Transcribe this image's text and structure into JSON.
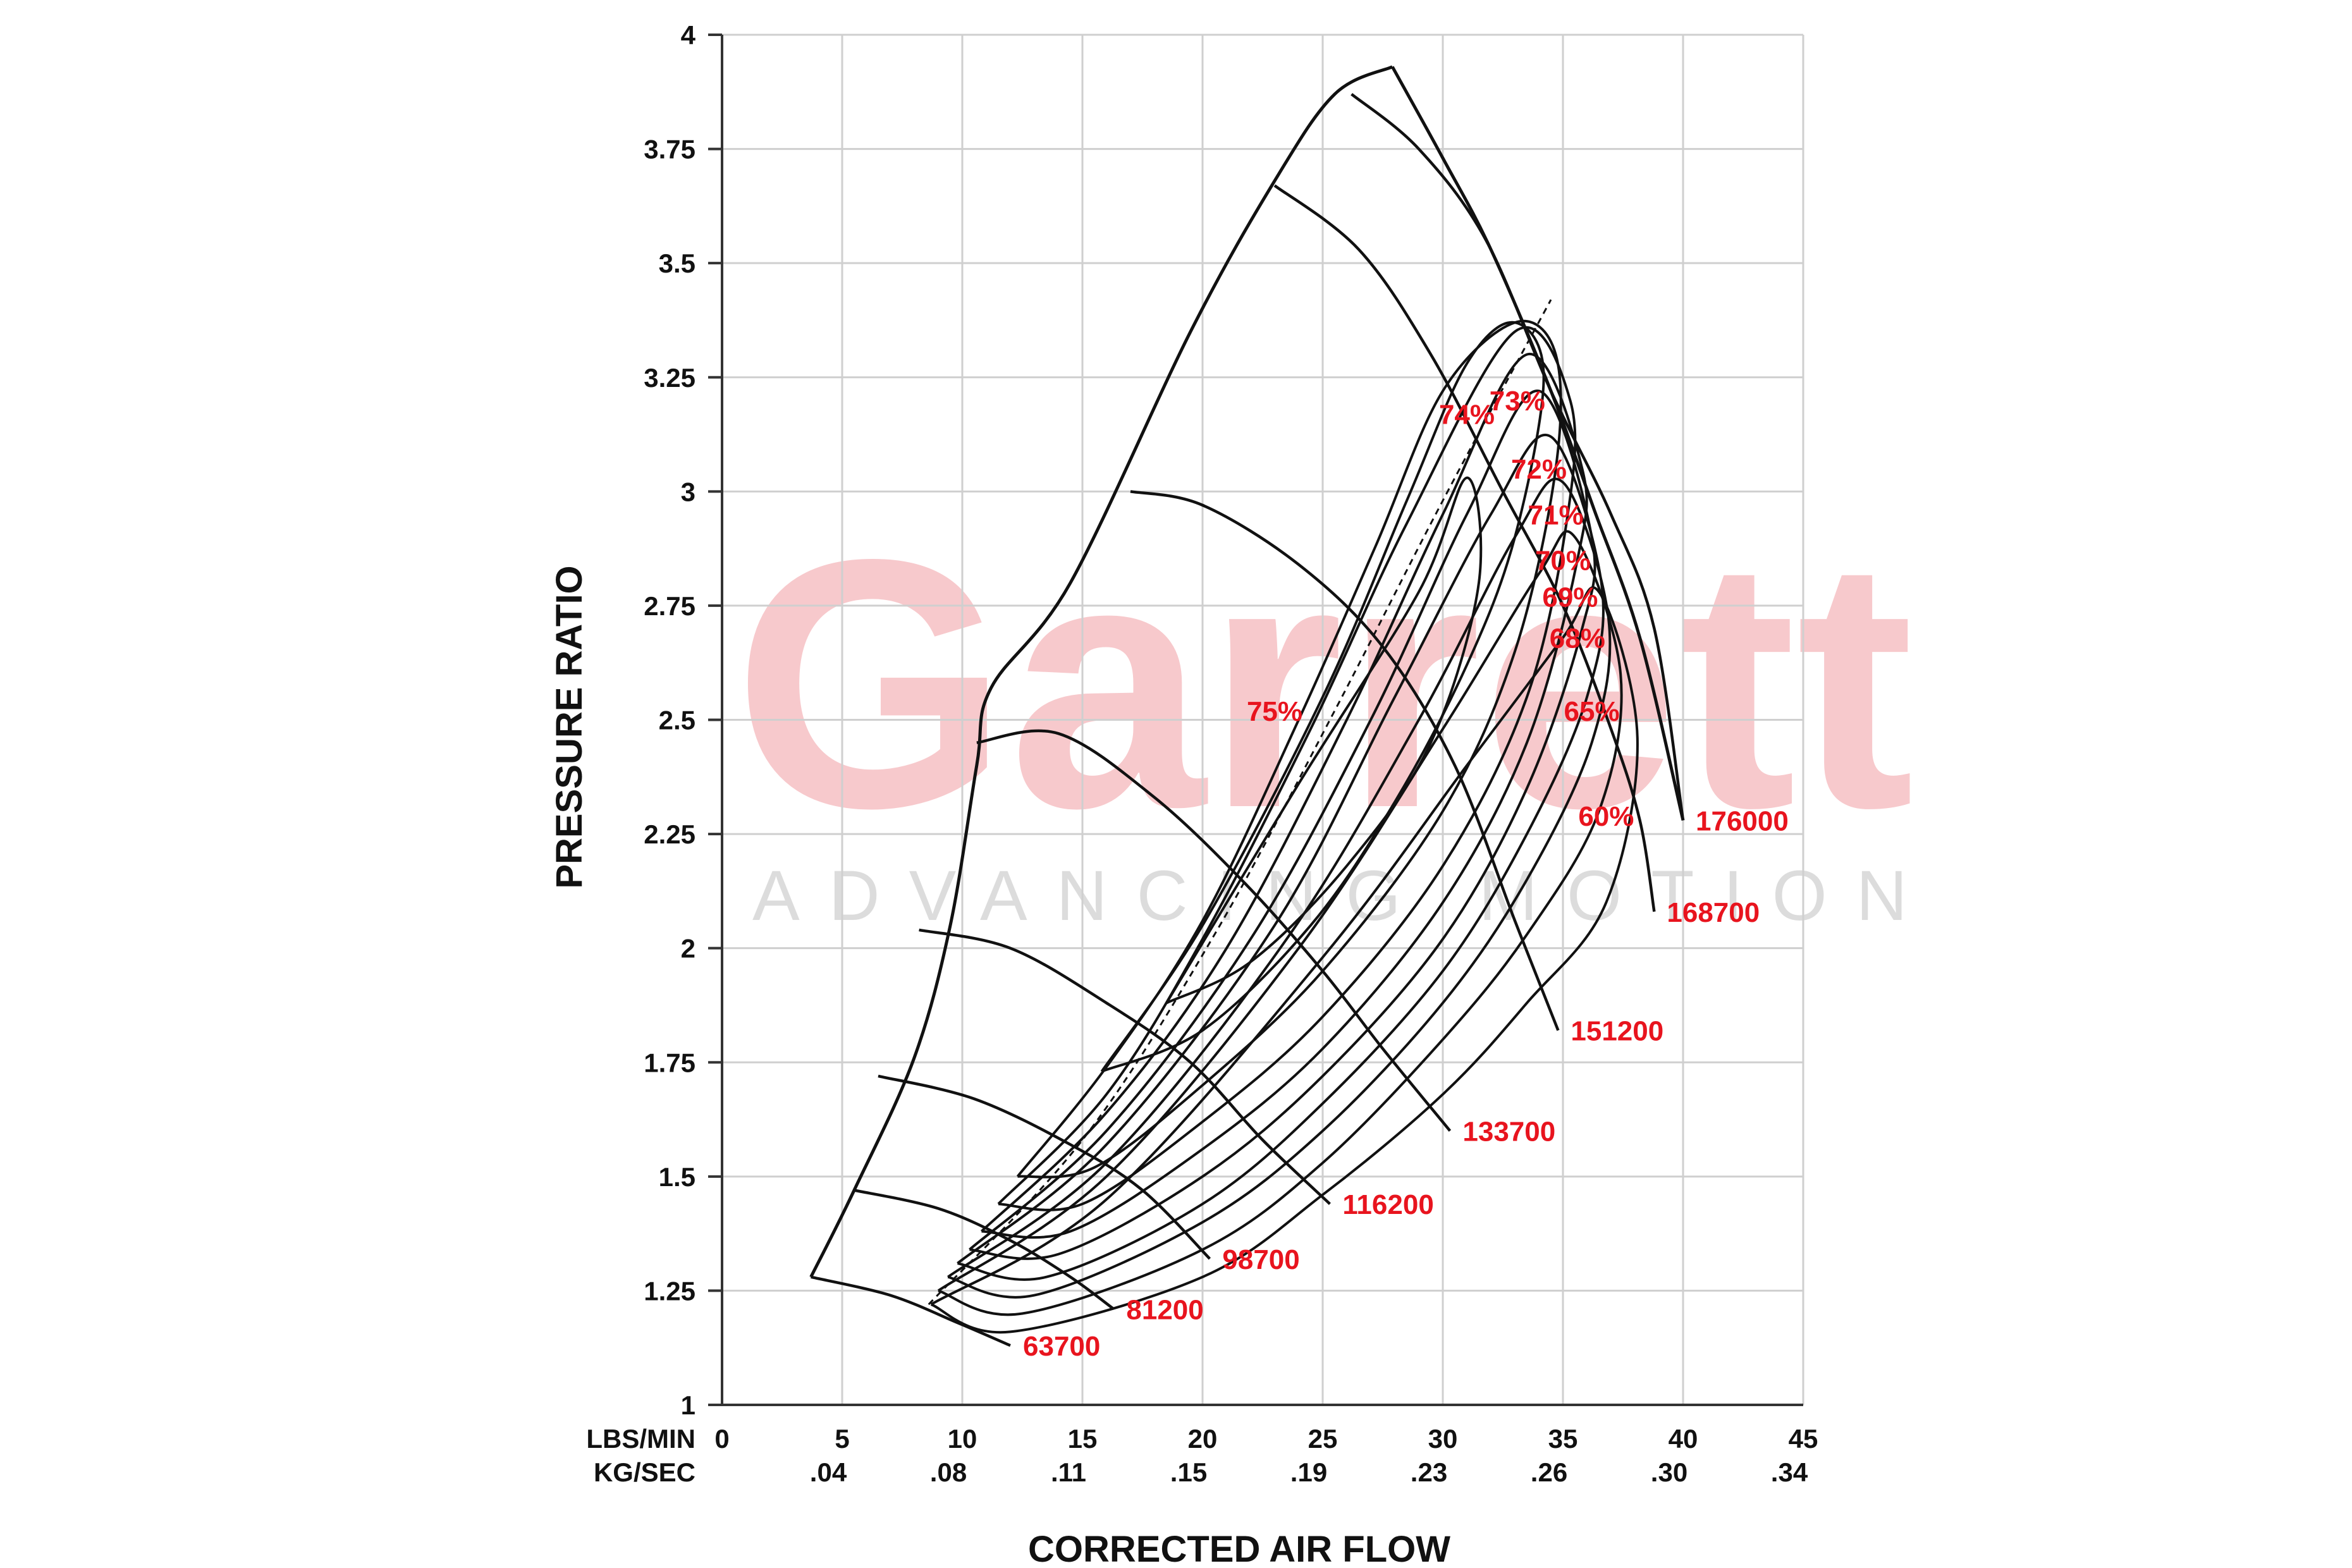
{
  "watermark": {
    "brand": "Garrett",
    "tagline": "ADVANCING MOTION"
  },
  "chart_data": {
    "type": "line",
    "title": "",
    "xlabel": "CORRECTED AIR FLOW",
    "ylabel": "PRESSURE RATIO",
    "xlim": [
      0,
      45
    ],
    "ylim": [
      1,
      4
    ],
    "grid": true,
    "x_ticks": [
      0,
      5,
      10,
      15,
      20,
      25,
      30,
      35,
      40,
      45
    ],
    "x_tick_labels": [
      "0",
      "5",
      "10",
      "15",
      "20",
      "25",
      "30",
      "35",
      "40",
      "45"
    ],
    "x2_tick_labels": [
      "",
      ".04",
      ".08",
      ".11",
      ".15",
      ".19",
      ".23",
      ".26",
      ".30",
      ".34"
    ],
    "x_unit_labels": [
      "LBS/MIN",
      "KG/SEC"
    ],
    "y_ticks": [
      1,
      1.25,
      1.5,
      1.75,
      2,
      2.25,
      2.5,
      2.75,
      3,
      3.25,
      3.5,
      3.75,
      4
    ],
    "y_tick_labels": [
      "1",
      "1.25",
      "1.5",
      "1.75",
      "2",
      "2.25",
      "2.5",
      "2.75",
      "3",
      "3.25",
      "3.5",
      "3.75",
      "4"
    ],
    "surge_line": [
      [
        3.7,
        1.28
      ],
      [
        5.5,
        1.47
      ],
      [
        8.0,
        1.76
      ],
      [
        9.5,
        2.05
      ],
      [
        10.6,
        2.4
      ],
      [
        11.2,
        2.57
      ],
      [
        14.5,
        2.8
      ],
      [
        19.5,
        3.35
      ],
      [
        23.0,
        3.68
      ],
      [
        25.5,
        3.87
      ],
      [
        27.9,
        3.93
      ]
    ],
    "choke_line": [
      [
        27.9,
        3.93
      ],
      [
        30.0,
        3.73
      ],
      [
        32.0,
        3.53
      ],
      [
        34.5,
        3.22
      ],
      [
        36.3,
        2.96
      ],
      [
        38.2,
        2.68
      ],
      [
        40.0,
        2.28
      ]
    ],
    "speed_lines": [
      {
        "name": "63700",
        "points": [
          [
            3.7,
            1.28
          ],
          [
            7.0,
            1.24
          ],
          [
            9.8,
            1.18
          ],
          [
            12.0,
            1.13
          ]
        ]
      },
      {
        "name": "81200",
        "points": [
          [
            5.5,
            1.47
          ],
          [
            9.0,
            1.43
          ],
          [
            12.0,
            1.36
          ],
          [
            14.5,
            1.28
          ],
          [
            16.3,
            1.21
          ]
        ]
      },
      {
        "name": "98700",
        "points": [
          [
            6.5,
            1.72
          ],
          [
            10.5,
            1.67
          ],
          [
            14.5,
            1.57
          ],
          [
            17.5,
            1.47
          ],
          [
            20.3,
            1.32
          ]
        ]
      },
      {
        "name": "116200",
        "points": [
          [
            8.2,
            2.04
          ],
          [
            12.0,
            2.0
          ],
          [
            16.0,
            1.88
          ],
          [
            19.5,
            1.75
          ],
          [
            22.5,
            1.58
          ],
          [
            25.3,
            1.44
          ]
        ]
      },
      {
        "name": "133700",
        "points": [
          [
            10.6,
            2.45
          ],
          [
            14.0,
            2.47
          ],
          [
            18.0,
            2.33
          ],
          [
            21.8,
            2.14
          ],
          [
            25.0,
            1.95
          ],
          [
            27.5,
            1.78
          ],
          [
            30.3,
            1.6
          ]
        ]
      },
      {
        "name": "151200",
        "points": [
          [
            17.0,
            3.0
          ],
          [
            20.0,
            2.97
          ],
          [
            24.0,
            2.84
          ],
          [
            27.5,
            2.66
          ],
          [
            30.5,
            2.4
          ],
          [
            33.0,
            2.06
          ],
          [
            34.8,
            1.82
          ]
        ]
      },
      {
        "name": "168700",
        "points": [
          [
            23.0,
            3.67
          ],
          [
            26.5,
            3.53
          ],
          [
            29.5,
            3.3
          ],
          [
            32.5,
            3.0
          ],
          [
            35.0,
            2.75
          ],
          [
            37.0,
            2.48
          ],
          [
            38.2,
            2.28
          ],
          [
            38.8,
            2.08
          ]
        ]
      },
      {
        "name": "176000",
        "points": [
          [
            26.2,
            3.87
          ],
          [
            29.0,
            3.75
          ],
          [
            31.8,
            3.55
          ],
          [
            34.5,
            3.22
          ],
          [
            37.0,
            2.95
          ],
          [
            38.8,
            2.7
          ],
          [
            40.0,
            2.28
          ]
        ]
      }
    ],
    "efficiency_islands": [
      {
        "name": "75%",
        "label_at": [
          23.0,
          2.52
        ],
        "points": [
          [
            18.5,
            1.88
          ],
          [
            24.0,
            2.36
          ],
          [
            29.0,
            2.78
          ],
          [
            31.0,
            3.03
          ],
          [
            31.5,
            2.8
          ],
          [
            29.5,
            2.45
          ],
          [
            26.0,
            2.18
          ],
          [
            22.0,
            1.97
          ],
          [
            18.5,
            1.88
          ]
        ]
      },
      {
        "name": "74%",
        "label_at": [
          31.0,
          3.17
        ],
        "points": [
          [
            15.8,
            1.73
          ],
          [
            20.0,
            2.05
          ],
          [
            25.0,
            2.55
          ],
          [
            28.5,
            2.98
          ],
          [
            31.0,
            3.28
          ],
          [
            33.0,
            3.37
          ],
          [
            34.2,
            3.25
          ],
          [
            33.0,
            2.9
          ],
          [
            31.0,
            2.62
          ],
          [
            28.0,
            2.32
          ],
          [
            24.5,
            2.05
          ],
          [
            20.0,
            1.82
          ],
          [
            15.8,
            1.73
          ]
        ]
      },
      {
        "name": "73%",
        "label_at": [
          33.1,
          3.2
        ],
        "points": [
          [
            12.3,
            1.5
          ],
          [
            16.0,
            1.74
          ],
          [
            20.0,
            2.06
          ],
          [
            24.0,
            2.5
          ],
          [
            27.2,
            2.88
          ],
          [
            30.0,
            3.22
          ],
          [
            33.0,
            3.37
          ],
          [
            34.7,
            3.3
          ],
          [
            34.7,
            3.05
          ],
          [
            33.0,
            2.65
          ],
          [
            30.0,
            2.3
          ],
          [
            25.0,
            1.95
          ],
          [
            20.0,
            1.7
          ],
          [
            15.5,
            1.52
          ],
          [
            12.3,
            1.5
          ]
        ]
      },
      {
        "name": "72%",
        "label_at": [
          34.0,
          3.05
        ],
        "points": [
          [
            11.5,
            1.44
          ],
          [
            16.0,
            1.68
          ],
          [
            20.0,
            2.02
          ],
          [
            24.5,
            2.48
          ],
          [
            28.5,
            2.93
          ],
          [
            33.0,
            3.35
          ],
          [
            35.3,
            3.2
          ],
          [
            35.2,
            2.95
          ],
          [
            33.5,
            2.55
          ],
          [
            30.0,
            2.18
          ],
          [
            25.0,
            1.85
          ],
          [
            20.0,
            1.62
          ],
          [
            15.0,
            1.44
          ],
          [
            11.5,
            1.44
          ]
        ]
      },
      {
        "name": "71%",
        "label_at": [
          34.7,
          2.95
        ],
        "points": [
          [
            10.8,
            1.38
          ],
          [
            16.0,
            1.64
          ],
          [
            21.0,
            2.0
          ],
          [
            26.0,
            2.5
          ],
          [
            30.0,
            2.95
          ],
          [
            33.5,
            3.3
          ],
          [
            35.8,
            3.05
          ],
          [
            35.6,
            2.85
          ],
          [
            33.5,
            2.45
          ],
          [
            30.0,
            2.1
          ],
          [
            25.0,
            1.78
          ],
          [
            20.0,
            1.56
          ],
          [
            14.5,
            1.38
          ],
          [
            10.8,
            1.38
          ]
        ]
      },
      {
        "name": "70%",
        "label_at": [
          35.0,
          2.85
        ],
        "points": [
          [
            10.3,
            1.34
          ],
          [
            16.0,
            1.6
          ],
          [
            22.0,
            2.02
          ],
          [
            27.0,
            2.5
          ],
          [
            31.0,
            2.95
          ],
          [
            34.0,
            3.22
          ],
          [
            36.2,
            2.9
          ],
          [
            35.8,
            2.7
          ],
          [
            33.5,
            2.35
          ],
          [
            30.0,
            2.02
          ],
          [
            25.0,
            1.72
          ],
          [
            20.0,
            1.5
          ],
          [
            14.0,
            1.33
          ],
          [
            10.3,
            1.34
          ]
        ]
      },
      {
        "name": "69%",
        "label_at": [
          35.3,
          2.77
        ],
        "points": [
          [
            9.8,
            1.31
          ],
          [
            16.0,
            1.57
          ],
          [
            23.0,
            2.05
          ],
          [
            28.0,
            2.55
          ],
          [
            32.0,
            2.95
          ],
          [
            34.5,
            3.12
          ],
          [
            36.6,
            2.8
          ],
          [
            36.0,
            2.55
          ],
          [
            33.5,
            2.25
          ],
          [
            30.0,
            1.95
          ],
          [
            25.0,
            1.66
          ],
          [
            20.0,
            1.44
          ],
          [
            13.5,
            1.28
          ],
          [
            9.8,
            1.31
          ]
        ]
      },
      {
        "name": "68%",
        "label_at": [
          35.6,
          2.68
        ],
        "points": [
          [
            9.4,
            1.28
          ],
          [
            16.0,
            1.53
          ],
          [
            23.5,
            2.02
          ],
          [
            29.0,
            2.5
          ],
          [
            33.0,
            2.9
          ],
          [
            35.0,
            3.02
          ],
          [
            36.9,
            2.72
          ],
          [
            36.2,
            2.45
          ],
          [
            33.5,
            2.15
          ],
          [
            30.0,
            1.88
          ],
          [
            25.0,
            1.6
          ],
          [
            20.0,
            1.4
          ],
          [
            13.0,
            1.24
          ],
          [
            9.4,
            1.28
          ]
        ]
      },
      {
        "name": "65%",
        "label_at": [
          36.2,
          2.52
        ],
        "points": [
          [
            9.0,
            1.25
          ],
          [
            16.0,
            1.5
          ],
          [
            24.0,
            2.0
          ],
          [
            30.0,
            2.48
          ],
          [
            34.0,
            2.82
          ],
          [
            35.5,
            2.9
          ],
          [
            37.4,
            2.6
          ],
          [
            36.5,
            2.3
          ],
          [
            33.5,
            2.03
          ],
          [
            30.0,
            1.8
          ],
          [
            25.0,
            1.53
          ],
          [
            20.0,
            1.34
          ],
          [
            12.5,
            1.2
          ],
          [
            9.0,
            1.25
          ]
        ]
      },
      {
        "name": "60%",
        "label_at": [
          36.8,
          2.29
        ],
        "points": [
          [
            8.7,
            1.22
          ],
          [
            16.0,
            1.45
          ],
          [
            25.0,
            1.98
          ],
          [
            31.0,
            2.4
          ],
          [
            35.0,
            2.68
          ],
          [
            36.5,
            2.78
          ],
          [
            38.1,
            2.46
          ],
          [
            36.8,
            2.1
          ],
          [
            33.5,
            1.88
          ],
          [
            30.0,
            1.68
          ],
          [
            25.0,
            1.46
          ],
          [
            20.0,
            1.28
          ],
          [
            12.0,
            1.16
          ],
          [
            8.7,
            1.22
          ]
        ]
      }
    ],
    "peak_efficiency_line": [
      [
        8.6,
        1.22
      ],
      [
        15.0,
        1.58
      ],
      [
        20.5,
        2.03
      ],
      [
        25.5,
        2.52
      ],
      [
        30.0,
        2.98
      ],
      [
        34.5,
        3.42
      ]
    ]
  }
}
